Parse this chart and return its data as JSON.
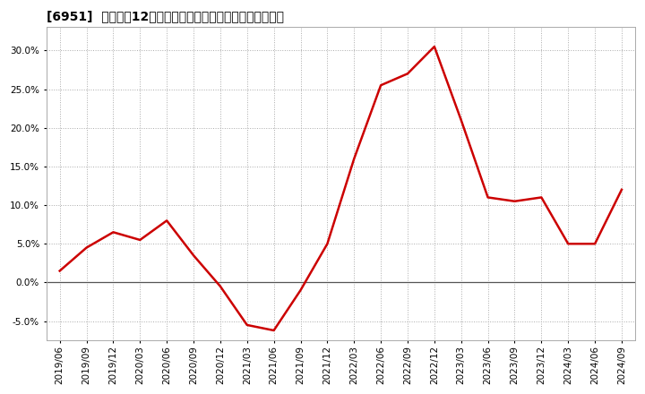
{
  "title": "[6951]  売上高の12か月移動合計の対前年同期増減率の推移",
  "line_color": "#cc0000",
  "background_color": "#ffffff",
  "plot_bg_color": "#ffffff",
  "grid_color": "#aaaaaa",
  "zero_line_color": "#555555",
  "ylim": [
    -7.5,
    33.0
  ],
  "yticks": [
    -5.0,
    0.0,
    5.0,
    10.0,
    15.0,
    20.0,
    25.0,
    30.0
  ],
  "dates": [
    "2019/06",
    "2019/09",
    "2019/12",
    "2020/03",
    "2020/06",
    "2020/09",
    "2020/12",
    "2021/03",
    "2021/06",
    "2021/09",
    "2021/12",
    "2022/03",
    "2022/06",
    "2022/09",
    "2022/12",
    "2023/03",
    "2023/06",
    "2023/09",
    "2023/12",
    "2024/03",
    "2024/06",
    "2024/09"
  ],
  "values": [
    1.5,
    4.5,
    6.5,
    5.5,
    8.0,
    3.5,
    -0.5,
    -5.5,
    -6.2,
    -1.0,
    5.0,
    16.0,
    25.5,
    27.0,
    30.5,
    21.0,
    11.0,
    10.5,
    11.0,
    5.0,
    5.0,
    12.0
  ],
  "title_fontsize": 10,
  "tick_fontsize": 7.5,
  "spine_color": "#aaaaaa"
}
